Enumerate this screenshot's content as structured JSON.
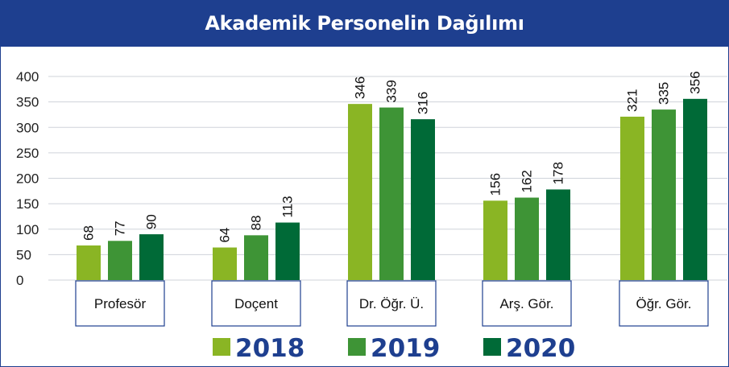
{
  "chart_data": {
    "type": "bar",
    "title": "Akademik Personelin Dağılımı",
    "categories": [
      "Profesör",
      "Doçent",
      "Dr. Öğr. Ü.",
      "Arş. Gör.",
      "Öğr. Gör."
    ],
    "series": [
      {
        "name": "2018",
        "color": "#8ab524",
        "values": [
          68,
          64,
          346,
          156,
          321
        ]
      },
      {
        "name": "2019",
        "color": "#3e9436",
        "values": [
          77,
          88,
          339,
          162,
          335
        ]
      },
      {
        "name": "2020",
        "color": "#006a37",
        "values": [
          90,
          113,
          316,
          178,
          356
        ]
      }
    ],
    "yticks": [
      "0",
      "50",
      "100",
      "150",
      "200",
      "250",
      "300",
      "350",
      "400"
    ],
    "ylim": [
      0,
      400
    ],
    "grid": true,
    "legend_position": "bottom-center",
    "title_bar_color": "#1e3f8f",
    "category_box_border_color": "#1e3f8f",
    "legend_text_color": "#1e3f8f"
  }
}
